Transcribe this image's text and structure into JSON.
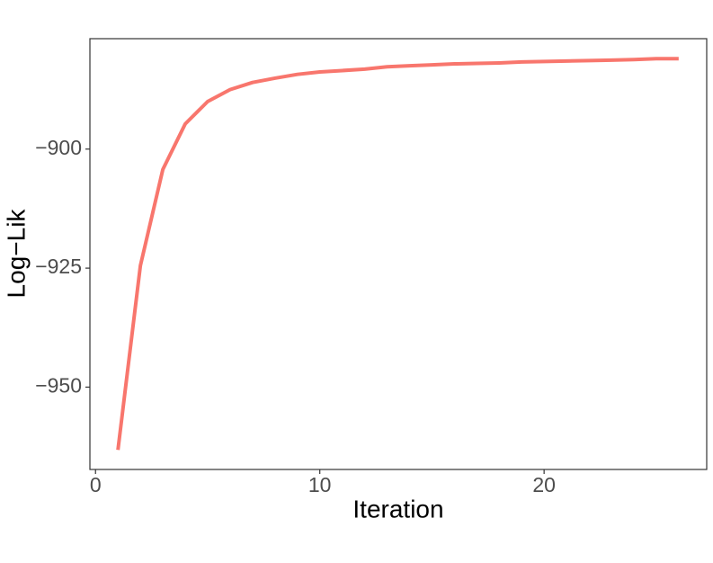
{
  "chart_data": {
    "type": "line",
    "x_label": "Iteration",
    "y_label": "Log−Lik",
    "x": [
      1,
      2,
      3,
      4,
      5,
      6,
      7,
      8,
      9,
      10,
      11,
      12,
      13,
      14,
      15,
      16,
      17,
      18,
      19,
      20,
      21,
      22,
      23,
      24,
      25,
      26
    ],
    "series": [
      {
        "color": "#F8766D",
        "values": [
          -963.2,
          -924.5,
          -904.3,
          -894.7,
          -890.0,
          -887.5,
          -886.0,
          -885.1,
          -884.3,
          -883.8,
          -883.5,
          -883.2,
          -882.7,
          -882.5,
          -882.3,
          -882.1,
          -882.0,
          -881.9,
          -881.7,
          -881.6,
          -881.5,
          -881.4,
          -881.3,
          -881.2,
          -881.0,
          -881.0
        ]
      }
    ],
    "xlim": [
      -0.25,
      27.25
    ],
    "xticks": [
      0,
      10,
      20
    ],
    "ylim": [
      -967.3,
      -876.8
    ],
    "yticks": [
      {
        "value": -950,
        "label": "−950"
      },
      {
        "value": -925,
        "label": "−925"
      },
      {
        "value": -900,
        "label": "−900"
      }
    ],
    "grid": false
  }
}
